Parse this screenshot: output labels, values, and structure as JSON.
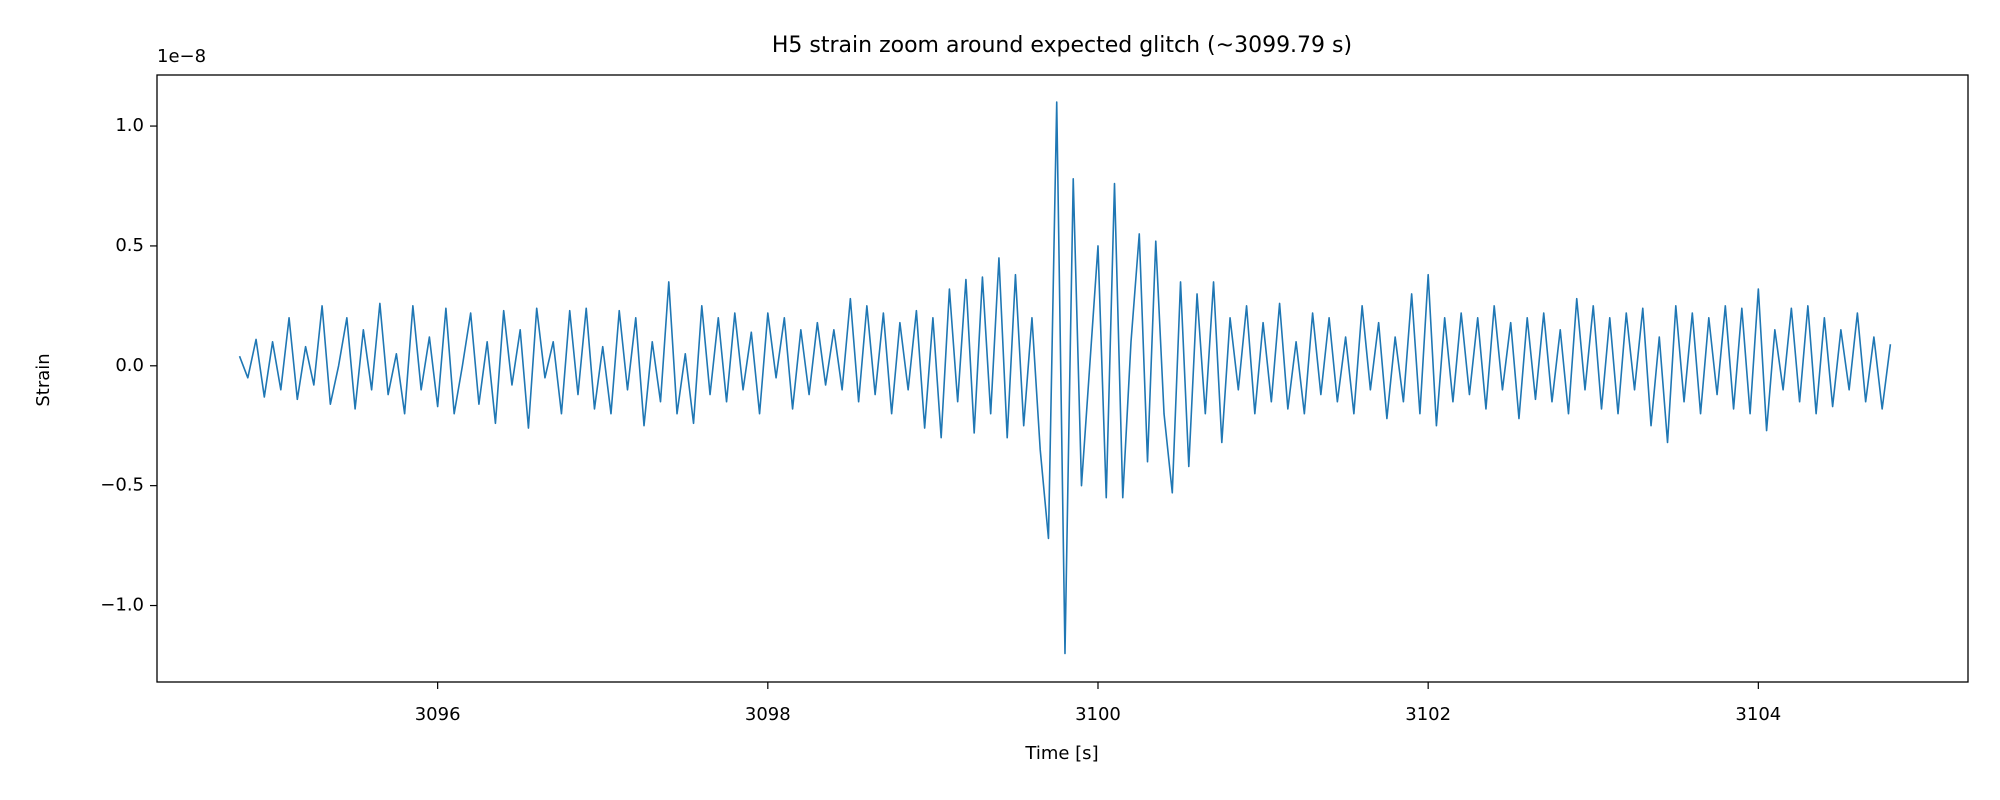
{
  "chart_data": {
    "type": "line",
    "title": "H5 strain zoom around expected glitch (~3099.79 s)",
    "x_label": "Time [s]",
    "y_label": "Strain",
    "y_offset_label": "1e−8",
    "color": "#1f77b4",
    "grid": false,
    "xlim": [
      3094.3,
      3105.27
    ],
    "ylim": [
      -1.319,
      1.213
    ],
    "xticks": [
      3096,
      3098,
      3100,
      3102,
      3104
    ],
    "yticks": [
      {
        "value": -1.0,
        "label": "−1.0"
      },
      {
        "value": -0.5,
        "label": "−0.5"
      },
      {
        "value": 0.0,
        "label": "0.0"
      },
      {
        "value": 0.5,
        "label": "0.5"
      },
      {
        "value": 1.0,
        "label": "1.0"
      }
    ],
    "x": [
      3094.8,
      3094.85,
      3094.9,
      3094.95,
      3095.0,
      3095.05,
      3095.1,
      3095.15,
      3095.2,
      3095.25,
      3095.3,
      3095.35,
      3095.4,
      3095.45,
      3095.5,
      3095.55,
      3095.6,
      3095.65,
      3095.7,
      3095.75,
      3095.8,
      3095.85,
      3095.9,
      3095.95,
      3096.0,
      3096.05,
      3096.1,
      3096.15,
      3096.2,
      3096.25,
      3096.3,
      3096.35,
      3096.4,
      3096.45,
      3096.5,
      3096.55,
      3096.6,
      3096.65,
      3096.7,
      3096.75,
      3096.8,
      3096.85,
      3096.9,
      3096.95,
      3097.0,
      3097.05,
      3097.1,
      3097.15,
      3097.2,
      3097.25,
      3097.3,
      3097.35,
      3097.4,
      3097.45,
      3097.5,
      3097.55,
      3097.6,
      3097.65,
      3097.7,
      3097.75,
      3097.8,
      3097.85,
      3097.9,
      3097.95,
      3098.0,
      3098.05,
      3098.1,
      3098.15,
      3098.2,
      3098.25,
      3098.3,
      3098.35,
      3098.4,
      3098.45,
      3098.5,
      3098.55,
      3098.6,
      3098.65,
      3098.7,
      3098.75,
      3098.8,
      3098.85,
      3098.9,
      3098.95,
      3099.0,
      3099.05,
      3099.1,
      3099.15,
      3099.2,
      3099.25,
      3099.3,
      3099.35,
      3099.4,
      3099.45,
      3099.5,
      3099.55,
      3099.6,
      3099.65,
      3099.7,
      3099.75,
      3099.8,
      3099.85,
      3099.9,
      3099.95,
      3100.0,
      3100.05,
      3100.1,
      3100.15,
      3100.2,
      3100.25,
      3100.3,
      3100.35,
      3100.4,
      3100.45,
      3100.5,
      3100.55,
      3100.6,
      3100.65,
      3100.7,
      3100.75,
      3100.8,
      3100.85,
      3100.9,
      3100.95,
      3101.0,
      3101.05,
      3101.1,
      3101.15,
      3101.2,
      3101.25,
      3101.3,
      3101.35,
      3101.4,
      3101.45,
      3101.5,
      3101.55,
      3101.6,
      3101.65,
      3101.7,
      3101.75,
      3101.8,
      3101.85,
      3101.9,
      3101.95,
      3102.0,
      3102.05,
      3102.1,
      3102.15,
      3102.2,
      3102.25,
      3102.3,
      3102.35,
      3102.4,
      3102.45,
      3102.5,
      3102.55,
      3102.6,
      3102.65,
      3102.7,
      3102.75,
      3102.8,
      3102.85,
      3102.9,
      3102.95,
      3103.0,
      3103.05,
      3103.1,
      3103.15,
      3103.2,
      3103.25,
      3103.3,
      3103.35,
      3103.4,
      3103.45,
      3103.5,
      3103.55,
      3103.6,
      3103.65,
      3103.7,
      3103.75,
      3103.8,
      3103.85,
      3103.9,
      3103.95,
      3104.0,
      3104.05,
      3104.1,
      3104.15,
      3104.2,
      3104.25,
      3104.3,
      3104.35,
      3104.4,
      3104.45,
      3104.5,
      3104.55,
      3104.6,
      3104.65,
      3104.7,
      3104.75,
      3104.8
    ],
    "values": [
      0.04,
      -0.05,
      0.11,
      -0.13,
      0.1,
      -0.1,
      0.2,
      -0.14,
      0.08,
      -0.08,
      0.25,
      -0.16,
      0.0,
      0.2,
      -0.18,
      0.15,
      -0.1,
      0.26,
      -0.12,
      0.05,
      -0.2,
      0.25,
      -0.1,
      0.12,
      -0.17,
      0.24,
      -0.2,
      0.0,
      0.22,
      -0.16,
      0.1,
      -0.24,
      0.23,
      -0.08,
      0.15,
      -0.26,
      0.24,
      -0.05,
      0.1,
      -0.2,
      0.23,
      -0.12,
      0.24,
      -0.18,
      0.08,
      -0.2,
      0.23,
      -0.1,
      0.2,
      -0.25,
      0.1,
      -0.15,
      0.35,
      -0.2,
      0.05,
      -0.24,
      0.25,
      -0.12,
      0.2,
      -0.15,
      0.22,
      -0.1,
      0.14,
      -0.2,
      0.22,
      -0.05,
      0.2,
      -0.18,
      0.15,
      -0.12,
      0.18,
      -0.08,
      0.15,
      -0.1,
      0.28,
      -0.15,
      0.25,
      -0.12,
      0.22,
      -0.2,
      0.18,
      -0.1,
      0.23,
      -0.26,
      0.2,
      -0.3,
      0.32,
      -0.15,
      0.36,
      -0.28,
      0.37,
      -0.2,
      0.45,
      -0.3,
      0.38,
      -0.25,
      0.2,
      -0.35,
      -0.72,
      1.1,
      -1.2,
      0.78,
      -0.5,
      0.0,
      0.5,
      -0.55,
      0.76,
      -0.55,
      0.1,
      0.55,
      -0.4,
      0.52,
      -0.2,
      -0.53,
      0.35,
      -0.42,
      0.3,
      -0.2,
      0.35,
      -0.32,
      0.2,
      -0.1,
      0.25,
      -0.2,
      0.18,
      -0.15,
      0.26,
      -0.18,
      0.1,
      -0.2,
      0.22,
      -0.12,
      0.2,
      -0.15,
      0.12,
      -0.2,
      0.25,
      -0.1,
      0.18,
      -0.22,
      0.12,
      -0.15,
      0.3,
      -0.2,
      0.38,
      -0.25,
      0.2,
      -0.15,
      0.22,
      -0.12,
      0.2,
      -0.18,
      0.25,
      -0.1,
      0.18,
      -0.22,
      0.2,
      -0.14,
      0.22,
      -0.15,
      0.15,
      -0.2,
      0.28,
      -0.1,
      0.25,
      -0.18,
      0.2,
      -0.2,
      0.22,
      -0.1,
      0.24,
      -0.25,
      0.12,
      -0.32,
      0.25,
      -0.15,
      0.22,
      -0.2,
      0.2,
      -0.12,
      0.25,
      -0.18,
      0.24,
      -0.2,
      0.32,
      -0.27,
      0.15,
      -0.1,
      0.24,
      -0.15,
      0.25,
      -0.2,
      0.2,
      -0.17,
      0.15,
      -0.1,
      0.22,
      -0.15,
      0.12,
      -0.18,
      0.09
    ]
  }
}
